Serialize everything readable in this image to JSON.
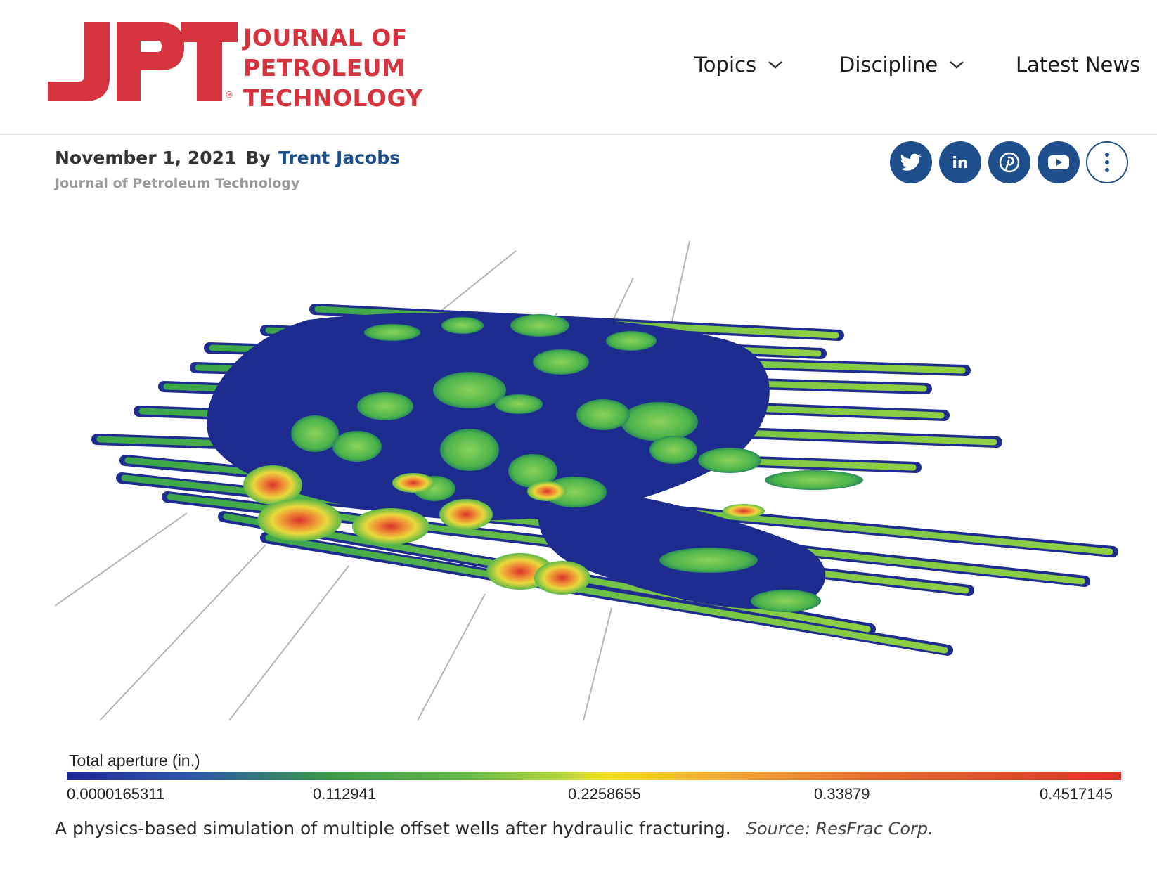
{
  "logo": {
    "mark": "JPT",
    "registered": "®",
    "lines": [
      "JOURNAL OF",
      "PETROLEUM",
      "TECHNOLOGY"
    ],
    "brand_color": "#d7333f"
  },
  "nav": {
    "topics": "Topics",
    "discipline": "Discipline",
    "latest_news": "Latest News"
  },
  "article": {
    "date": "November 1, 2021",
    "by": "By",
    "author": "Trent Jacobs",
    "publication": "Journal of Petroleum Technology"
  },
  "social": [
    {
      "name": "twitter",
      "icon": "twitter-icon"
    },
    {
      "name": "linkedin",
      "icon": "linkedin-icon"
    },
    {
      "name": "pinterest",
      "icon": "pinterest-icon"
    },
    {
      "name": "youtube",
      "icon": "youtube-icon"
    },
    {
      "name": "more",
      "icon": "more-vertical-icon"
    }
  ],
  "accent_color": "#1f4e8c",
  "figure": {
    "colorbar_title": "Total aperture (in.)",
    "colorbar_ticks": [
      "0.0000165311",
      "0.112941",
      "0.2258655",
      "0.33879",
      "0.4517145"
    ],
    "caption": "A physics-based simulation of multiple offset wells after hydraulic fracturing.",
    "source": "Source: ResFrac Corp."
  }
}
